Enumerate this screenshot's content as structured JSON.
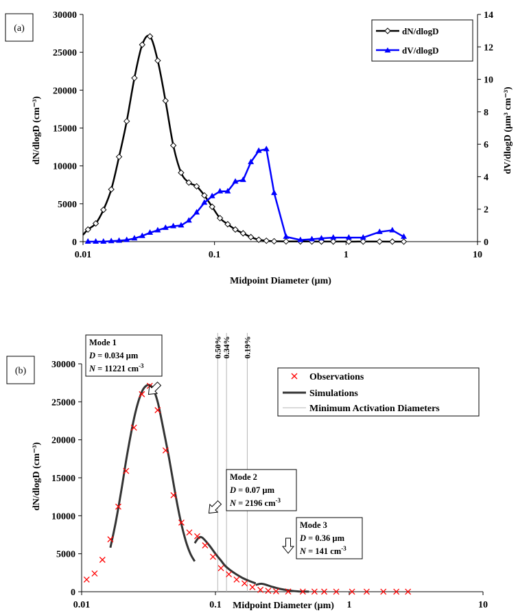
{
  "chart_data": [
    {
      "panel_label": "(a)",
      "type": "line",
      "xscale": "log",
      "xlim": [
        0.01,
        10
      ],
      "xticks": [
        "0.01",
        "0.1",
        "1",
        "10"
      ],
      "xlabel": "Midpoint Diameter (µm)",
      "ylabel_left": "dN/dlogD (cm⁻³)",
      "ylabel_right": "dV/dlogD (µm³ cm⁻³)",
      "ylim_left": [
        0,
        30000
      ],
      "yticks_left": [
        "0",
        "5000",
        "10000",
        "15000",
        "20000",
        "25000",
        "30000"
      ],
      "ylim_right": [
        0,
        14
      ],
      "yticks_right": [
        "0",
        "2",
        "4",
        "6",
        "8",
        "10",
        "12",
        "14"
      ],
      "legend_position": "top-right",
      "grid": false,
      "series": [
        {
          "name": "dN/dlogD",
          "axis": "left",
          "color": "#000000",
          "marker": "diamond-open",
          "x": [
            0.0109,
            0.0125,
            0.0143,
            0.0164,
            0.0188,
            0.0215,
            0.0246,
            0.0282,
            0.0323,
            0.037,
            0.0424,
            0.0486,
            0.0557,
            0.0638,
            0.0731,
            0.0837,
            0.0959,
            0.11,
            0.126,
            0.144,
            0.165,
            0.189,
            0.217,
            0.248,
            0.284,
            0.35,
            0.45,
            0.55,
            0.65,
            0.8,
            1.05,
            1.35,
            1.8,
            2.25,
            2.75
          ],
          "values": [
            1600,
            2400,
            4200,
            6900,
            11200,
            15900,
            21600,
            26000,
            27100,
            23900,
            18600,
            12700,
            9100,
            7800,
            7300,
            6100,
            4600,
            3100,
            2300,
            1600,
            1100,
            600,
            250,
            120,
            50,
            30,
            20,
            15,
            10,
            8,
            5,
            5,
            5,
            3,
            3
          ]
        },
        {
          "name": "dV/dlogD",
          "axis": "right",
          "color": "#0000ff",
          "marker": "triangle-filled",
          "x": [
            0.0109,
            0.0125,
            0.0143,
            0.0164,
            0.0188,
            0.0215,
            0.0246,
            0.0282,
            0.0323,
            0.037,
            0.0424,
            0.0486,
            0.0557,
            0.0638,
            0.0731,
            0.0837,
            0.0959,
            0.11,
            0.126,
            0.144,
            0.165,
            0.189,
            0.217,
            0.248,
            0.284,
            0.35,
            0.45,
            0.55,
            0.65,
            0.8,
            1.05,
            1.35,
            1.8,
            2.25,
            2.75
          ],
          "values": [
            0.0,
            0.0,
            0.0,
            0.03,
            0.06,
            0.1,
            0.2,
            0.35,
            0.55,
            0.7,
            0.85,
            0.95,
            1.0,
            1.3,
            1.8,
            2.4,
            2.8,
            3.1,
            3.1,
            3.7,
            3.8,
            4.9,
            5.6,
            5.7,
            3.0,
            0.3,
            0.1,
            0.15,
            0.2,
            0.25,
            0.25,
            0.25,
            0.6,
            0.7,
            0.3
          ]
        }
      ]
    },
    {
      "panel_label": "(b)",
      "type": "line",
      "xscale": "log",
      "xlim": [
        0.01,
        10
      ],
      "xticks": [
        "0.01",
        "0.1",
        "1",
        "10"
      ],
      "xlabel": "Midpoint Diameter (µm)",
      "ylabel_left": "dN/dlogD (cm⁻³)",
      "ylim_left": [
        0,
        30000
      ],
      "yticks_left": [
        "0",
        "5000",
        "10000",
        "15000",
        "20000",
        "25000",
        "30000"
      ],
      "legend_position": "top-right",
      "grid": false,
      "series": [
        {
          "name": "Observations",
          "color": "#ff0000",
          "marker": "x",
          "x": [
            0.0109,
            0.0125,
            0.0143,
            0.0164,
            0.0188,
            0.0215,
            0.0246,
            0.0282,
            0.0323,
            0.037,
            0.0424,
            0.0486,
            0.0557,
            0.0638,
            0.0731,
            0.0837,
            0.0959,
            0.11,
            0.126,
            0.144,
            0.165,
            0.189,
            0.217,
            0.248,
            0.284,
            0.35,
            0.45,
            0.55,
            0.65,
            0.8,
            1.05,
            1.35,
            1.8,
            2.25,
            2.75
          ],
          "values": [
            1600,
            2400,
            4200,
            6900,
            11200,
            15900,
            21600,
            26000,
            27100,
            23900,
            18600,
            12700,
            9100,
            7800,
            7300,
            6100,
            4600,
            3100,
            2300,
            1600,
            1100,
            600,
            250,
            120,
            50,
            30,
            20,
            15,
            10,
            8,
            5,
            5,
            5,
            3,
            3
          ]
        },
        {
          "name": "Simulations",
          "color": "#333333",
          "segments": [
            {
              "x": [
                0.0164,
                0.018,
                0.02,
                0.022,
                0.025,
                0.028,
                0.031,
                0.034,
                0.037,
                0.04,
                0.045,
                0.05,
                0.055,
                0.06,
                0.065,
                0.07
              ],
              "values": [
                5800,
                9200,
                13800,
                18300,
                23300,
                26200,
                27200,
                26800,
                25000,
                22200,
                17600,
                13000,
                9300,
                6700,
                5000,
                4000
              ]
            },
            {
              "x": [
                0.07,
                0.075,
                0.08,
                0.09,
                0.1,
                0.11,
                0.12,
                0.14,
                0.16,
                0.18,
                0.2
              ],
              "values": [
                6400,
                7100,
                7100,
                6100,
                5000,
                4100,
                3300,
                2400,
                1800,
                1400,
                1100
              ]
            },
            {
              "x": [
                0.2,
                0.22,
                0.24,
                0.26,
                0.3,
                0.36,
                0.42,
                0.5
              ],
              "values": [
                900,
                1050,
                900,
                700,
                400,
                150,
                40,
                10
              ]
            }
          ]
        },
        {
          "name": "Minimum Activation Diameters",
          "color": "#b4b4b4",
          "vlines": [
            {
              "x": 0.104,
              "label": "0.50%"
            },
            {
              "x": 0.121,
              "label": "0.34%"
            },
            {
              "x": 0.173,
              "label": "0.19%"
            }
          ]
        }
      ],
      "annotations": [
        {
          "title": "Mode 1",
          "d_label": "D",
          "d_value": " = 0.034 µm",
          "n_label": "N",
          "n_value": " = 11221 cm",
          "n_unit_exp": "-3"
        },
        {
          "title": "Mode 2",
          "d_label": "D",
          "d_value": " = 0.07 µm",
          "n_label": "N",
          "n_value": " = 2196 cm",
          "n_unit_exp": "-3"
        },
        {
          "title": "Mode 3",
          "d_label": "D",
          "d_value": " = 0.36 µm",
          "n_label": "N",
          "n_value": " = 141 cm",
          "n_unit_exp": "-3"
        }
      ]
    }
  ]
}
